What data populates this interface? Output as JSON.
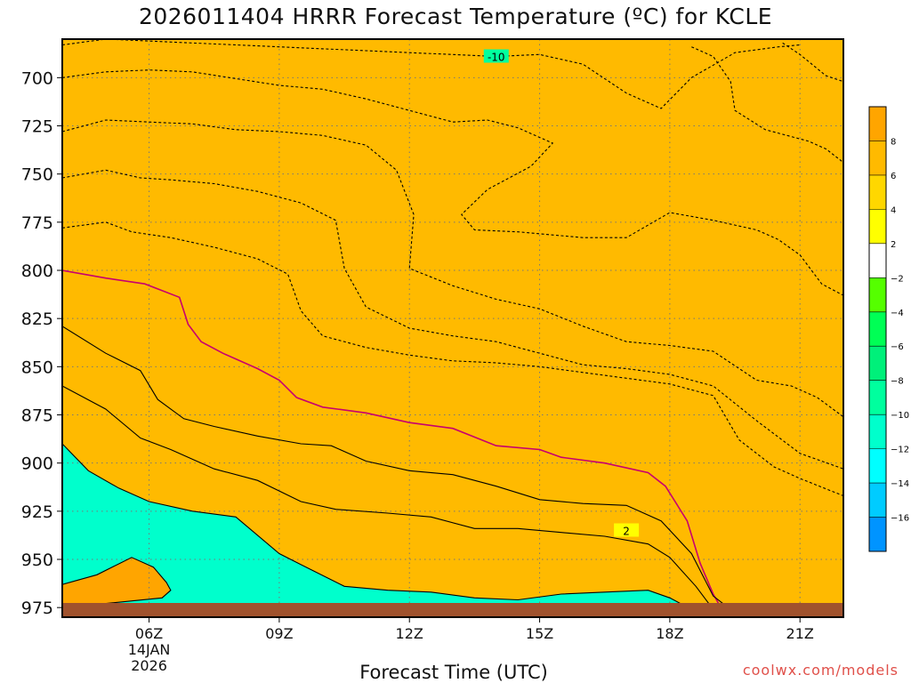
{
  "title": "2026011404 HRRR Forecast Temperature (ºC) for KCLE",
  "xlabel": "Forecast Time (UTC)",
  "credit": "coolwx.com/models",
  "chart_data": {
    "type": "heatmap",
    "x_ticks": [
      {
        "hour": 6,
        "label": "06Z",
        "sublabels": [
          "14JAN",
          "2026"
        ]
      },
      {
        "hour": 9,
        "label": "09Z",
        "sublabels": []
      },
      {
        "hour": 12,
        "label": "12Z",
        "sublabels": []
      },
      {
        "hour": 15,
        "label": "15Z",
        "sublabels": []
      },
      {
        "hour": 18,
        "label": "18Z",
        "sublabels": []
      },
      {
        "hour": 21,
        "label": "21Z",
        "sublabels": []
      }
    ],
    "xlim": [
      4,
      22
    ],
    "ylabel_ticks": [
      700,
      725,
      750,
      775,
      800,
      825,
      850,
      875,
      900,
      925,
      950,
      975
    ],
    "ylim": [
      980,
      680
    ],
    "y_scale": "pressure (hPa), inverted",
    "grid": true,
    "colorbar": {
      "placement": "right",
      "levels": [
        {
          "from": 8,
          "to": 10,
          "color": "#ffa500"
        },
        {
          "from": 6,
          "to": 8,
          "color": "#ffba00"
        },
        {
          "from": 4,
          "to": 6,
          "color": "#ffd700"
        },
        {
          "from": 2,
          "to": 4,
          "color": "#ffff00"
        },
        {
          "from": -2,
          "to": 2,
          "color": "#ffffff"
        },
        {
          "from": -4,
          "to": -2,
          "color": "#55ff00"
        },
        {
          "from": -6,
          "to": -4,
          "color": "#00ff55"
        },
        {
          "from": -8,
          "to": -6,
          "color": "#00f07a"
        },
        {
          "from": -10,
          "to": -8,
          "color": "#00ff9e"
        },
        {
          "from": -12,
          "to": -10,
          "color": "#00ffcc"
        },
        {
          "from": -14,
          "to": -12,
          "color": "#00ffff"
        },
        {
          "from": -16,
          "to": -14,
          "color": "#00ccff"
        },
        {
          "from": -18,
          "to": -16,
          "color": "#0094ff"
        }
      ],
      "tick_labels": [
        "8",
        "6",
        "4",
        "2",
        "−2",
        "−4",
        "−6",
        "−8",
        "−10",
        "−12",
        "−14",
        "−16"
      ]
    },
    "isotherms": [
      {
        "value": -10,
        "label": "-10",
        "label_at": [
          14,
          689
        ],
        "points": [
          [
            4,
            683
          ],
          [
            5,
            680
          ],
          [
            7,
            682
          ],
          [
            9,
            684
          ],
          [
            11,
            686
          ],
          [
            12,
            687
          ],
          [
            13,
            688
          ],
          [
            14,
            689
          ],
          [
            15,
            688
          ],
          [
            16,
            693
          ],
          [
            17,
            708
          ],
          [
            17.8,
            716
          ],
          [
            18.5,
            700
          ],
          [
            19.5,
            687
          ],
          [
            20.5,
            684
          ],
          [
            21,
            683
          ]
        ]
      },
      {
        "value": -12,
        "points": [
          [
            18.5,
            684
          ],
          [
            19,
            689
          ],
          [
            19.4,
            702
          ],
          [
            19.5,
            717
          ],
          [
            20.2,
            727
          ],
          [
            21.2,
            733
          ],
          [
            21.6,
            737
          ],
          [
            22,
            744
          ]
        ]
      },
      {
        "value": -14,
        "points": [
          [
            20.6,
            682
          ],
          [
            21,
            688
          ],
          [
            21.6,
            699
          ],
          [
            22,
            702
          ]
        ]
      },
      {
        "value": -8,
        "points": [
          [
            4,
            700
          ],
          [
            5,
            697
          ],
          [
            6,
            696
          ],
          [
            7,
            697
          ],
          [
            9,
            704
          ],
          [
            10,
            706
          ],
          [
            11,
            711
          ],
          [
            12,
            717
          ],
          [
            13,
            723
          ],
          [
            13.8,
            722
          ],
          [
            14.5,
            726
          ],
          [
            15.3,
            734
          ],
          [
            14.8,
            746
          ],
          [
            13.8,
            758
          ],
          [
            13.2,
            771
          ],
          [
            13.5,
            779
          ],
          [
            14.5,
            780
          ],
          [
            16,
            783
          ],
          [
            17,
            783
          ],
          [
            18,
            770
          ],
          [
            19,
            774
          ],
          [
            20,
            779
          ],
          [
            20.5,
            784
          ],
          [
            21,
            792
          ],
          [
            21.5,
            807
          ],
          [
            22,
            813
          ]
        ]
      },
      {
        "value": -6,
        "points": [
          [
            4,
            728
          ],
          [
            5,
            722
          ],
          [
            6,
            723
          ],
          [
            7,
            724
          ],
          [
            8,
            727
          ],
          [
            9,
            728
          ],
          [
            10,
            730
          ],
          [
            11,
            735
          ],
          [
            11.7,
            748
          ],
          [
            12.1,
            771
          ],
          [
            12,
            799
          ],
          [
            13,
            808
          ],
          [
            14,
            815
          ],
          [
            15,
            820
          ],
          [
            16,
            829
          ],
          [
            17,
            837
          ],
          [
            18,
            839
          ],
          [
            19,
            842
          ],
          [
            20,
            857
          ],
          [
            20.8,
            860
          ],
          [
            21.4,
            866
          ],
          [
            22,
            876
          ]
        ]
      },
      {
        "value": -4,
        "points": [
          [
            4,
            752
          ],
          [
            5,
            748
          ],
          [
            5.8,
            752
          ],
          [
            6.5,
            753
          ],
          [
            7.5,
            755
          ],
          [
            8.5,
            759
          ],
          [
            9.5,
            765
          ],
          [
            10.3,
            774
          ],
          [
            10.5,
            799
          ],
          [
            11,
            819
          ],
          [
            12,
            830
          ],
          [
            13,
            834
          ],
          [
            14,
            837
          ],
          [
            15,
            843
          ],
          [
            16,
            849
          ],
          [
            17,
            851
          ],
          [
            18,
            854
          ],
          [
            19,
            860
          ],
          [
            20,
            878
          ],
          [
            21,
            895
          ],
          [
            22,
            903
          ]
        ]
      },
      {
        "value": -2,
        "points": [
          [
            4,
            778
          ],
          [
            5,
            775
          ],
          [
            5.6,
            780
          ],
          [
            6.5,
            783
          ],
          [
            7.5,
            788
          ],
          [
            8.5,
            794
          ],
          [
            9.2,
            802
          ],
          [
            9.5,
            821
          ],
          [
            10,
            834
          ],
          [
            11,
            840
          ],
          [
            12,
            844
          ],
          [
            13,
            847
          ],
          [
            14,
            848
          ],
          [
            15,
            850
          ],
          [
            16,
            853
          ],
          [
            17,
            856
          ],
          [
            18,
            859
          ],
          [
            19,
            865
          ],
          [
            19.6,
            888
          ],
          [
            20.4,
            902
          ],
          [
            21,
            908
          ],
          [
            22,
            917
          ]
        ]
      },
      {
        "value": 0,
        "points": [
          [
            4,
            800
          ],
          [
            5,
            804
          ],
          [
            5.9,
            807
          ],
          [
            6.7,
            814
          ],
          [
            6.9,
            828
          ],
          [
            7.2,
            837
          ],
          [
            7.7,
            843
          ],
          [
            8.5,
            851
          ],
          [
            9,
            857
          ],
          [
            9.4,
            866
          ],
          [
            10,
            871
          ],
          [
            11,
            874
          ],
          [
            12,
            879
          ],
          [
            13,
            882
          ],
          [
            14,
            891
          ],
          [
            15,
            893
          ],
          [
            15.5,
            897
          ],
          [
            16.5,
            900
          ],
          [
            17.5,
            905
          ],
          [
            17.9,
            912
          ],
          [
            18.4,
            930
          ],
          [
            18.7,
            952
          ],
          [
            19,
            968
          ],
          [
            19.2,
            976
          ]
        ]
      },
      {
        "value": 2,
        "label": "2",
        "label_at": [
          17,
          935
        ],
        "points": [
          [
            4,
            829
          ],
          [
            5,
            843
          ],
          [
            5.8,
            852
          ],
          [
            6.2,
            867
          ],
          [
            6.8,
            877
          ],
          [
            7.5,
            881
          ],
          [
            8.5,
            886
          ],
          [
            9.5,
            890
          ],
          [
            10.2,
            891
          ],
          [
            11,
            899
          ],
          [
            12,
            904
          ],
          [
            13,
            906
          ],
          [
            14,
            912
          ],
          [
            15,
            919
          ],
          [
            16,
            921
          ],
          [
            17,
            922
          ],
          [
            17.8,
            930
          ],
          [
            18.5,
            947
          ],
          [
            19,
            969
          ],
          [
            19.4,
            976
          ]
        ]
      },
      {
        "value": 4,
        "points": [
          [
            4,
            860
          ],
          [
            5,
            872
          ],
          [
            5.8,
            887
          ],
          [
            6.5,
            893
          ],
          [
            7.5,
            903
          ],
          [
            8.5,
            909
          ],
          [
            9.5,
            920
          ],
          [
            10.3,
            924
          ],
          [
            11.5,
            926
          ],
          [
            12.5,
            928
          ],
          [
            13.5,
            934
          ],
          [
            14.5,
            934
          ],
          [
            15.5,
            936
          ],
          [
            16.5,
            938
          ],
          [
            17.5,
            942
          ],
          [
            18,
            949
          ],
          [
            18.6,
            964
          ],
          [
            19,
            976
          ]
        ]
      },
      {
        "value": 6,
        "points": [
          [
            4,
            890
          ],
          [
            4.6,
            904
          ],
          [
            5.3,
            913
          ],
          [
            6,
            920
          ],
          [
            7,
            925
          ],
          [
            8,
            928
          ],
          [
            9,
            947
          ],
          [
            9.7,
            955
          ],
          [
            10.5,
            964
          ],
          [
            11.5,
            966
          ],
          [
            12.5,
            967
          ],
          [
            13.5,
            970
          ],
          [
            14.5,
            971
          ],
          [
            15.5,
            968
          ],
          [
            16.5,
            967
          ],
          [
            17.5,
            966
          ],
          [
            18,
            970
          ],
          [
            18.5,
            976
          ]
        ]
      },
      {
        "value": 8,
        "points": [
          [
            4,
            963
          ],
          [
            4.8,
            958
          ],
          [
            5.6,
            949
          ],
          [
            6.1,
            954
          ],
          [
            6.4,
            962
          ],
          [
            6.5,
            966
          ],
          [
            6.3,
            970
          ],
          [
            4.5,
            974
          ],
          [
            4,
            975
          ]
        ]
      }
    ]
  }
}
